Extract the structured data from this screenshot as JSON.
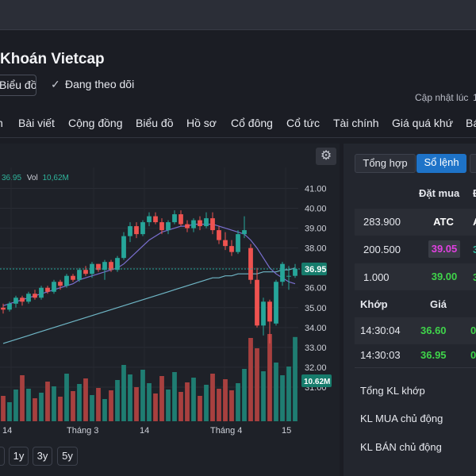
{
  "header": {
    "title": "Khoán Vietcap",
    "chart_button": "Biểu đồ",
    "follow_label": "Đang theo dõi",
    "updated_label": "Cập nhật lúc",
    "updated_value": "1"
  },
  "nav": {
    "tabs": [
      "n",
      "Bài viết",
      "Cộng đồng",
      "Biểu đồ",
      "Hồ sơ",
      "Cổ đông",
      "Cổ tức",
      "Tài chính",
      "Giá quá khứ",
      "Bá"
    ]
  },
  "chart": {
    "legend_value": "36.95",
    "legend_vol_label": "Vol",
    "legend_vol_value": "10,62M",
    "price_badge": "36.95",
    "vol_badge": "10.62M",
    "range_buttons": [
      "",
      "1y",
      "3y",
      "5y"
    ]
  },
  "chart_data": {
    "type": "candlestick",
    "yaxis_ticks": [
      41.0,
      40.0,
      39.0,
      38.0,
      37.0,
      36.0,
      35.0,
      34.0,
      33.0,
      32.0,
      31.0
    ],
    "ylim": [
      30.4,
      41.3
    ],
    "xaxis_labels": [
      "14",
      "Tháng 3",
      "14",
      "Tháng 4",
      "15"
    ],
    "last_price": 36.95,
    "colors": {
      "up": "#26a69a",
      "down": "#ef5350",
      "ma_short": "#7a6fd0",
      "ma_long": "#6fb6c6",
      "price_line": "#26a69a"
    },
    "candles": [
      [
        35.0,
        35.2,
        34.7,
        34.9
      ],
      [
        34.9,
        35.3,
        34.8,
        35.2
      ],
      [
        35.2,
        35.6,
        35.0,
        35.5
      ],
      [
        35.5,
        35.6,
        35.1,
        35.3
      ],
      [
        35.3,
        35.8,
        35.2,
        35.7
      ],
      [
        35.7,
        35.9,
        35.4,
        35.5
      ],
      [
        35.5,
        36.1,
        35.4,
        36.0
      ],
      [
        36.0,
        36.1,
        35.7,
        35.8
      ],
      [
        35.8,
        36.4,
        35.7,
        36.3
      ],
      [
        36.3,
        36.4,
        35.9,
        36.1
      ],
      [
        36.1,
        36.7,
        36.0,
        36.6
      ],
      [
        36.6,
        36.7,
        36.3,
        36.4
      ],
      [
        36.4,
        37.0,
        36.3,
        36.9
      ],
      [
        36.9,
        37.1,
        36.6,
        36.7
      ],
      [
        36.7,
        37.3,
        36.5,
        37.2
      ],
      [
        37.2,
        37.2,
        36.8,
        36.9
      ],
      [
        36.9,
        37.4,
        36.4,
        37.3
      ],
      [
        37.3,
        37.4,
        36.8,
        36.9
      ],
      [
        36.9,
        37.6,
        36.8,
        37.5
      ],
      [
        37.5,
        38.8,
        37.4,
        38.6
      ],
      [
        38.6,
        39.3,
        38.3,
        39.1
      ],
      [
        39.1,
        39.3,
        38.5,
        38.7
      ],
      [
        38.7,
        39.4,
        38.6,
        39.3
      ],
      [
        39.3,
        39.8,
        39.1,
        39.6
      ],
      [
        39.6,
        39.8,
        39.2,
        39.3
      ],
      [
        39.3,
        39.5,
        38.7,
        38.9
      ],
      [
        38.9,
        39.4,
        38.7,
        39.3
      ],
      [
        39.3,
        39.9,
        39.2,
        39.7
      ],
      [
        39.7,
        39.9,
        39.1,
        39.2
      ],
      [
        39.2,
        39.4,
        38.8,
        39.0
      ],
      [
        39.0,
        39.5,
        38.8,
        39.4
      ],
      [
        39.4,
        39.6,
        38.9,
        39.1
      ],
      [
        39.1,
        39.8,
        39.0,
        39.5
      ],
      [
        39.5,
        39.8,
        38.7,
        38.9
      ],
      [
        38.9,
        39.1,
        38.2,
        38.4
      ],
      [
        38.4,
        38.8,
        37.9,
        38.1
      ],
      [
        38.1,
        38.4,
        37.6,
        37.8
      ],
      [
        37.8,
        38.9,
        37.7,
        38.7
      ],
      [
        38.7,
        39.6,
        38.5,
        38.9
      ],
      [
        38.0,
        38.2,
        36.2,
        36.4
      ],
      [
        36.4,
        37.0,
        34.0,
        34.1
      ],
      [
        34.1,
        35.5,
        33.6,
        35.3
      ],
      [
        35.3,
        35.4,
        33.2,
        34.3
      ],
      [
        34.2,
        36.4,
        34.1,
        36.3
      ],
      [
        36.3,
        37.3,
        36.1,
        37.2
      ],
      [
        36.6,
        37.1,
        35.9,
        36.6
      ],
      [
        36.6,
        37.2,
        36.5,
        36.95
      ]
    ],
    "volumes": [
      3.2,
      2.4,
      4.0,
      5.8,
      4.1,
      2.9,
      3.6,
      5.0,
      4.4,
      3.1,
      6.0,
      3.8,
      4.7,
      5.4,
      3.3,
      4.2,
      2.8,
      3.9,
      5.2,
      7.1,
      5.9,
      4.3,
      6.5,
      4.8,
      3.5,
      5.7,
      4.0,
      6.2,
      3.7,
      4.9,
      5.5,
      3.2,
      4.6,
      6.0,
      4.1,
      5.3,
      3.9,
      4.8,
      6.6,
      10.5,
      9.2,
      6.3,
      11.0,
      7.4,
      5.8,
      6.9,
      10.62
    ],
    "ma_short": [
      35.1,
      35.2,
      35.3,
      35.4,
      35.5,
      35.6,
      35.7,
      35.8,
      35.9,
      36.0,
      36.1,
      36.2,
      36.4,
      36.5,
      36.6,
      36.7,
      36.8,
      36.9,
      37.0,
      37.2,
      37.5,
      37.8,
      38.1,
      38.4,
      38.6,
      38.8,
      38.9,
      39.0,
      39.1,
      39.1,
      39.2,
      39.2,
      39.2,
      39.2,
      39.1,
      39.0,
      38.9,
      38.8,
      38.7,
      38.4,
      38.0,
      37.5,
      37.0,
      36.7,
      36.5,
      36.3,
      36.2
    ],
    "ma_long": [
      33.2,
      33.3,
      33.4,
      33.5,
      33.6,
      33.7,
      33.8,
      33.9,
      34.0,
      34.1,
      34.2,
      34.3,
      34.4,
      34.5,
      34.6,
      34.7,
      34.8,
      34.9,
      35.0,
      35.1,
      35.2,
      35.3,
      35.4,
      35.5,
      35.6,
      35.7,
      35.8,
      35.9,
      36.0,
      36.1,
      36.2,
      36.3,
      36.4,
      36.5,
      36.5,
      36.6,
      36.6,
      36.7,
      36.7,
      36.7,
      36.7,
      36.8,
      36.8,
      36.8,
      36.9,
      36.9,
      37.0
    ]
  },
  "right_panel": {
    "tabs": [
      "Tổng hợp",
      "Sổ lệnh",
      "I"
    ],
    "bid_header": "Đặt mua",
    "bid_header_extra": "Đ",
    "orders": [
      {
        "qty": "283.900",
        "price": "ATC",
        "extra": "A",
        "price_color": "#ffffff",
        "price_bg": ""
      },
      {
        "qty": "200.500",
        "price": "39.05",
        "extra": "3",
        "price_color": "#e040e0",
        "price_bg": "#3a3d46"
      },
      {
        "qty": "1.000",
        "price": "39.00",
        "extra": "3",
        "price_color": "#3fd44a",
        "price_bg": ""
      }
    ],
    "match_header": "Khớp",
    "match_price_header": "Giá",
    "matches": [
      {
        "time": "14:30:04",
        "price": "36.60",
        "extra": "0"
      },
      {
        "time": "14:30:03",
        "price": "36.95",
        "extra": "0"
      }
    ],
    "stats": [
      "Tổng KL khớp",
      "KL MUA chủ động",
      "KL BÁN chủ động"
    ]
  }
}
